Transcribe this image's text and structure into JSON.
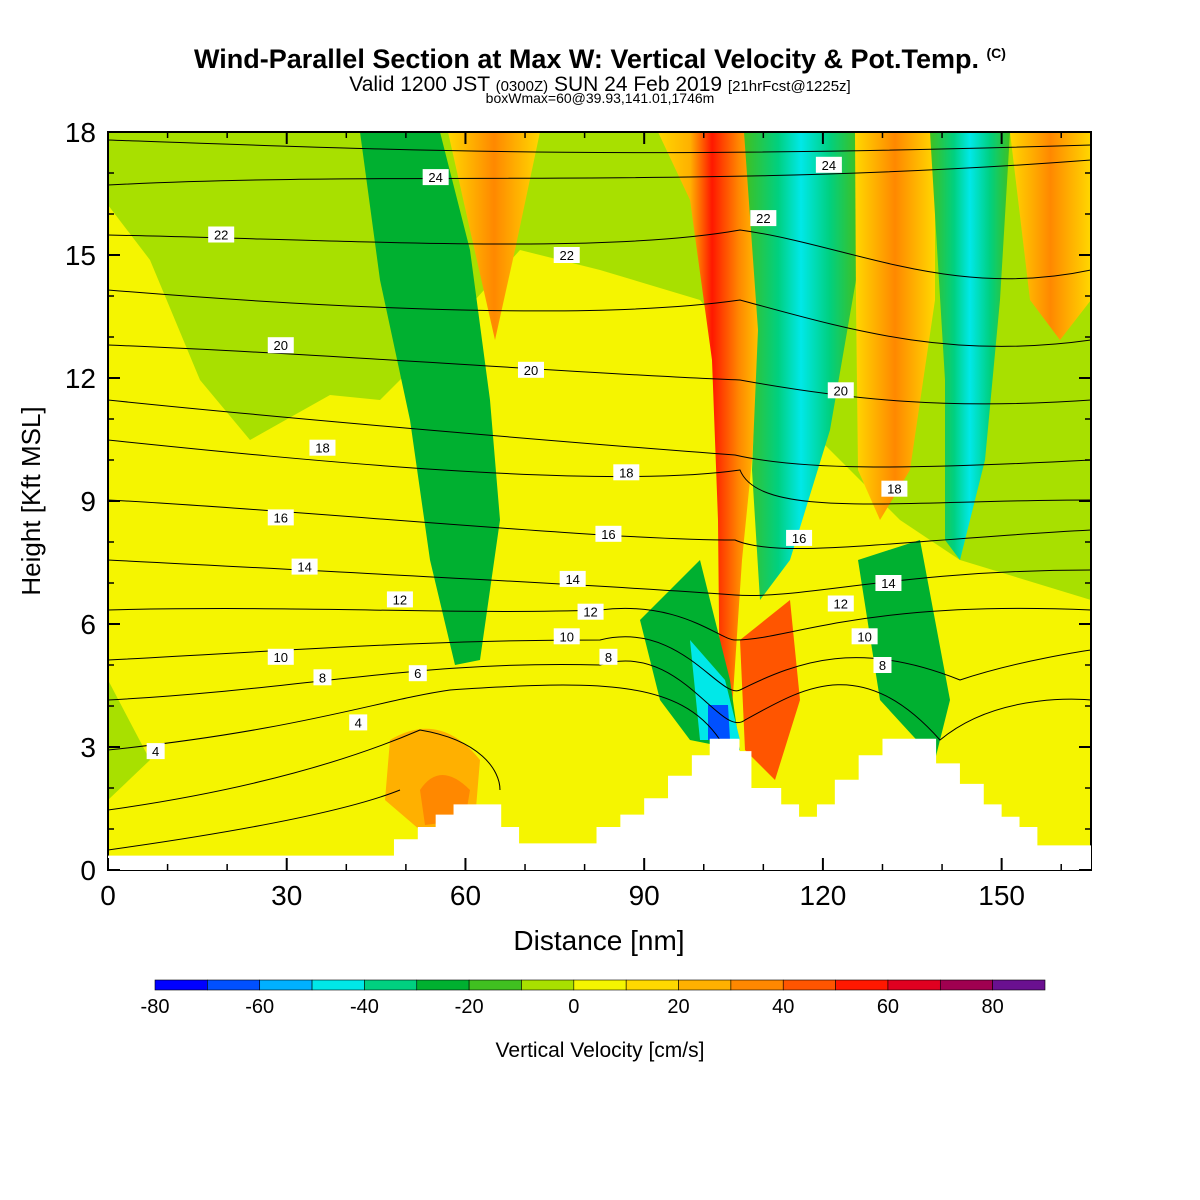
{
  "header": {
    "title": "Wind-Parallel Section at Max W: Vertical Velocity & Pot.Temp.",
    "copyright": "(C)",
    "valid_prefix": "Valid 1200 JST",
    "valid_zulu": "(0300Z)",
    "valid_date": "SUN 24 Feb 2019",
    "forecast": "[21hrFcst@1225z]",
    "box_info": "boxWmax=60@39.93,141.01,1746m"
  },
  "chart_data": {
    "type": "heatmap",
    "xlabel": "Distance [nm]",
    "ylabel": "Height [Kft MSL]",
    "xlim": [
      0,
      165
    ],
    "ylim": [
      0,
      18
    ],
    "xticks": [
      0,
      30,
      60,
      90,
      120,
      150
    ],
    "yticks": [
      0,
      3,
      6,
      9,
      12,
      15,
      18
    ],
    "colorbar": {
      "label": "Vertical Velocity [cm/s]",
      "bounds": [
        -80,
        90
      ],
      "ticks": [
        -80,
        -60,
        -40,
        -20,
        0,
        20,
        40,
        60,
        80
      ],
      "colors": [
        "#0000ff",
        "#0050ff",
        "#00b0ff",
        "#00e8e8",
        "#00d080",
        "#00b030",
        "#40c020",
        "#a8e000",
        "#f5f500",
        "#ffd800",
        "#ffb000",
        "#ff8800",
        "#ff5500",
        "#ff1800",
        "#e00020",
        "#a00050",
        "#6a1090"
      ]
    },
    "terrain": [
      [
        0,
        0.35
      ],
      [
        44,
        0.35
      ],
      [
        48,
        0.75
      ],
      [
        52,
        1.05
      ],
      [
        55,
        1.35
      ],
      [
        58,
        1.6
      ],
      [
        63,
        1.6
      ],
      [
        66,
        1.05
      ],
      [
        69,
        0.65
      ],
      [
        78,
        0.65
      ],
      [
        82,
        1.05
      ],
      [
        86,
        1.35
      ],
      [
        90,
        1.75
      ],
      [
        94,
        2.3
      ],
      [
        98,
        2.8
      ],
      [
        101,
        3.2
      ],
      [
        104,
        3.2
      ],
      [
        106,
        2.9
      ],
      [
        108,
        2.0
      ],
      [
        113,
        1.6
      ],
      [
        116,
        1.3
      ],
      [
        119,
        1.6
      ],
      [
        122,
        2.2
      ],
      [
        126,
        2.8
      ],
      [
        130,
        3.2
      ],
      [
        135,
        3.2
      ],
      [
        139,
        2.6
      ],
      [
        143,
        2.1
      ],
      [
        147,
        1.6
      ],
      [
        150,
        1.3
      ],
      [
        153,
        1.05
      ],
      [
        156,
        0.6
      ],
      [
        165,
        0.55
      ]
    ],
    "theta_labels": [
      {
        "text": "24",
        "x": 55,
        "y": 16.9
      },
      {
        "text": "24",
        "x": 121,
        "y": 17.2
      },
      {
        "text": "22",
        "x": 19,
        "y": 15.5
      },
      {
        "text": "22",
        "x": 77,
        "y": 15.0
      },
      {
        "text": "22",
        "x": 110,
        "y": 15.9
      },
      {
        "text": "20",
        "x": 29,
        "y": 12.8
      },
      {
        "text": "20",
        "x": 71,
        "y": 12.2
      },
      {
        "text": "20",
        "x": 123,
        "y": 11.7
      },
      {
        "text": "18",
        "x": 36,
        "y": 10.3
      },
      {
        "text": "18",
        "x": 87,
        "y": 9.7
      },
      {
        "text": "18",
        "x": 132,
        "y": 9.3
      },
      {
        "text": "16",
        "x": 29,
        "y": 8.6
      },
      {
        "text": "16",
        "x": 84,
        "y": 8.2
      },
      {
        "text": "16",
        "x": 116,
        "y": 8.1
      },
      {
        "text": "14",
        "x": 33,
        "y": 7.4
      },
      {
        "text": "14",
        "x": 78,
        "y": 7.1
      },
      {
        "text": "14",
        "x": 131,
        "y": 7.0
      },
      {
        "text": "12",
        "x": 49,
        "y": 6.6
      },
      {
        "text": "12",
        "x": 81,
        "y": 6.3
      },
      {
        "text": "12",
        "x": 123,
        "y": 6.5
      },
      {
        "text": "10",
        "x": 29,
        "y": 5.2
      },
      {
        "text": "10",
        "x": 77,
        "y": 5.7
      },
      {
        "text": "10",
        "x": 127,
        "y": 5.7
      },
      {
        "text": "8",
        "x": 36,
        "y": 4.7
      },
      {
        "text": "8",
        "x": 84,
        "y": 5.2
      },
      {
        "text": "8",
        "x": 130,
        "y": 5.0
      },
      {
        "text": "6",
        "x": 52,
        "y": 4.8
      },
      {
        "text": "4",
        "x": 42,
        "y": 3.6
      },
      {
        "text": "4",
        "x": 8,
        "y": 2.9
      }
    ]
  },
  "theme": {
    "background": "#ffffff",
    "text": "#000000"
  }
}
